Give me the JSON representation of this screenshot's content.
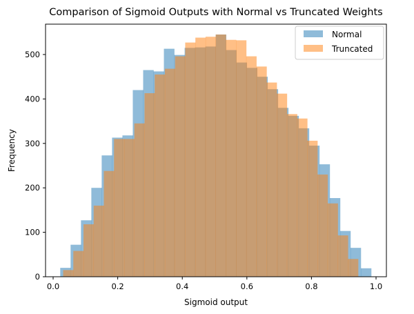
{
  "chart_data": {
    "type": "bar",
    "subtype": "overlapping-histogram",
    "title": "Comparison of Sigmoid Outputs with Normal vs Truncated Weights",
    "xlabel": "Sigmoid output",
    "ylabel": "Frequency",
    "xlim": [
      -0.02,
      1.04
    ],
    "ylim": [
      0,
      570
    ],
    "xticks": [
      0.0,
      0.2,
      0.4,
      0.6,
      0.8,
      1.0
    ],
    "xtick_labels": [
      "0.0",
      "0.2",
      "0.4",
      "0.6",
      "0.8",
      "1.0"
    ],
    "yticks": [
      0,
      100,
      200,
      300,
      400,
      500
    ],
    "ytick_labels": [
      "0",
      "100",
      "200",
      "300",
      "400",
      "500"
    ],
    "grid": false,
    "legend_position": "upper right",
    "series": [
      {
        "name": "Normal",
        "color": "#1f77b4",
        "alpha": 0.5,
        "bin_start": 0.022,
        "bin_width": 0.0321,
        "values": [
          20,
          72,
          127,
          200,
          273,
          313,
          318,
          420,
          465,
          462,
          513,
          499,
          515,
          516,
          518,
          545,
          510,
          482,
          470,
          450,
          422,
          380,
          362,
          334,
          295,
          253,
          177,
          103,
          65,
          19
        ]
      },
      {
        "name": "Truncated",
        "color": "#ff7f0e",
        "alpha": 0.5,
        "bin_start": 0.031,
        "bin_width": 0.0315,
        "values": [
          15,
          58,
          118,
          160,
          238,
          310,
          310,
          345,
          413,
          455,
          468,
          496,
          527,
          538,
          540,
          545,
          533,
          532,
          496,
          473,
          437,
          412,
          366,
          356,
          306,
          230,
          165,
          93,
          40
        ]
      }
    ]
  }
}
